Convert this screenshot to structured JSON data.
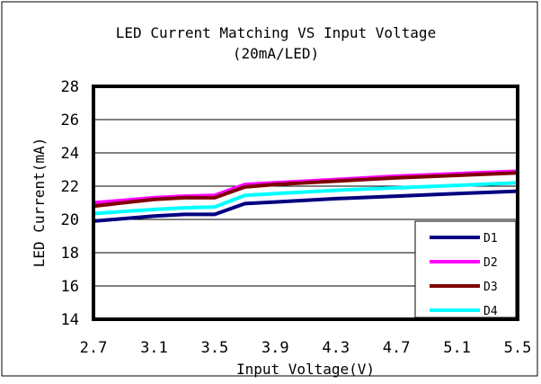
{
  "chart_data": {
    "type": "line",
    "title": "LED Current Matching VS Input Voltage",
    "subtitle": "(20mA/LED)",
    "xlabel": "Input Voltage(V)",
    "ylabel": "LED Current(mA)",
    "xlim": [
      2.7,
      5.5
    ],
    "ylim": [
      14,
      28
    ],
    "x_ticks": [
      "2.7",
      "3.1",
      "3.5",
      "3.9",
      "4.3",
      "4.7",
      "5.1",
      "5.5"
    ],
    "y_ticks": [
      "14",
      "16",
      "18",
      "20",
      "22",
      "24",
      "26",
      "28"
    ],
    "grid": "horizontal",
    "legend_position": "bottom-right",
    "x": [
      2.7,
      3.1,
      3.3,
      3.5,
      3.7,
      3.9,
      4.3,
      4.7,
      5.1,
      5.5
    ],
    "series": [
      {
        "name": "D1",
        "color": "#000080",
        "values": [
          19.9,
          20.2,
          20.3,
          20.3,
          20.95,
          21.05,
          21.25,
          21.4,
          21.55,
          21.7
        ]
      },
      {
        "name": "D2",
        "color": "#ff00ff",
        "values": [
          21.0,
          21.3,
          21.4,
          21.45,
          22.1,
          22.2,
          22.4,
          22.6,
          22.75,
          22.9
        ]
      },
      {
        "name": "D3",
        "color": "#800000",
        "values": [
          20.8,
          21.2,
          21.3,
          21.3,
          21.95,
          22.1,
          22.3,
          22.5,
          22.65,
          22.8
        ]
      },
      {
        "name": "D4",
        "color": "#00ffff",
        "values": [
          20.35,
          20.6,
          20.7,
          20.75,
          21.45,
          21.55,
          21.75,
          21.9,
          22.05,
          22.2
        ]
      }
    ]
  }
}
